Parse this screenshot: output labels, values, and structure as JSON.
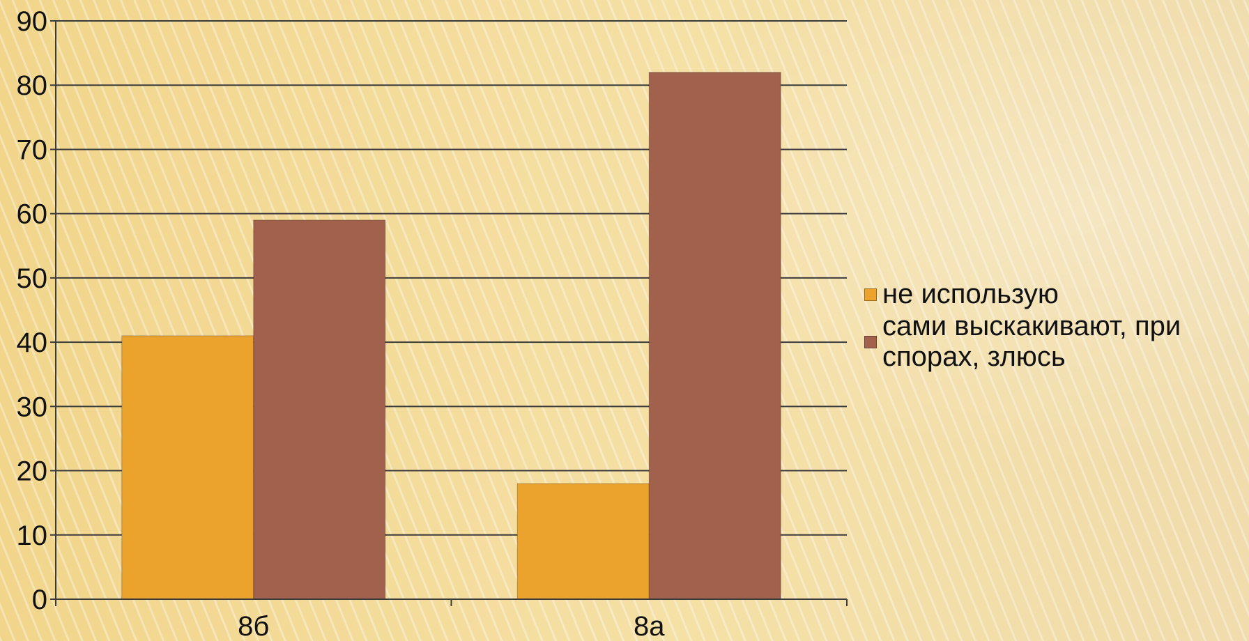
{
  "chart_data": {
    "type": "bar",
    "title": "",
    "xlabel": "",
    "ylabel": "",
    "categories": [
      "8б",
      "8а"
    ],
    "series": [
      {
        "name": "не использую",
        "values": [
          41,
          18
        ],
        "color": "#eca32e"
      },
      {
        "name": "сами выскакивают, при спорах, злюсь",
        "values": [
          59,
          82
        ],
        "color": "#a1614d"
      }
    ],
    "ylim": [
      0,
      90
    ],
    "yticks": [
      0,
      10,
      20,
      30,
      40,
      50,
      60,
      70,
      80,
      90
    ],
    "grid": true,
    "legend_position": "right"
  },
  "legend": {
    "items": [
      {
        "label": "не использую",
        "color": "#eca32e",
        "icon": "square-swatch"
      },
      {
        "label": "сами выскакивают, при спорах, злюсь",
        "color": "#a1614d",
        "icon": "square-swatch"
      }
    ]
  }
}
